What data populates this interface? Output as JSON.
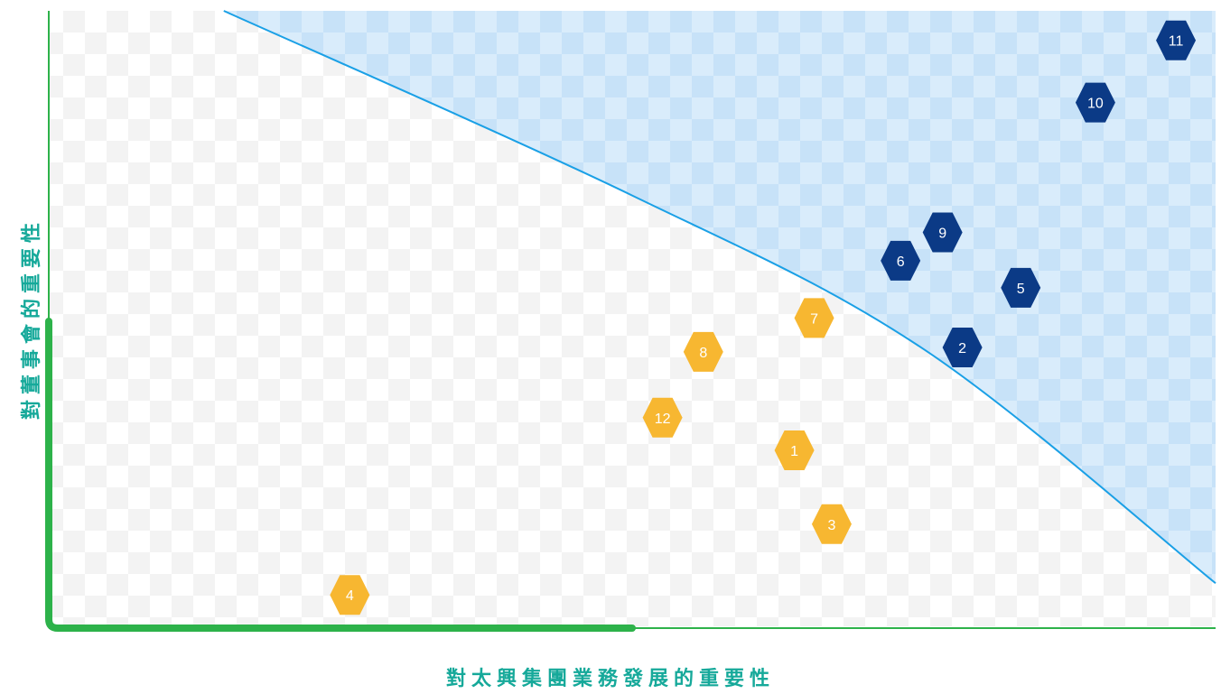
{
  "chart_data": {
    "type": "scatter",
    "title": "",
    "xlabel": "對太興集團業務發展的重要性",
    "ylabel": "對董事會的重要性",
    "xlim": [
      0,
      100
    ],
    "ylim": [
      0,
      100
    ],
    "grid": false,
    "legend": "none",
    "colors": {
      "material": "#0b3a86",
      "other": "#f7b731",
      "threshold_line": "#1aa0e6",
      "material_zone_fill": "#cfe7fb",
      "axis": "#2db24a",
      "title": "#16a99a"
    },
    "threshold_curve": [
      [
        15,
        100
      ],
      [
        50,
        70
      ],
      [
        75,
        45
      ],
      [
        100,
        7
      ]
    ],
    "series": [
      {
        "group": "material",
        "points": [
          {
            "label": "11",
            "x": 96.6,
            "y": 95.2
          },
          {
            "label": "10",
            "x": 89.7,
            "y": 85.1
          },
          {
            "label": "9",
            "x": 76.6,
            "y": 64.0
          },
          {
            "label": "6",
            "x": 73.0,
            "y": 59.4
          },
          {
            "label": "5",
            "x": 83.3,
            "y": 55.0
          },
          {
            "label": "2",
            "x": 78.3,
            "y": 45.3
          }
        ]
      },
      {
        "group": "other",
        "points": [
          {
            "label": "7",
            "x": 65.6,
            "y": 50.1
          },
          {
            "label": "8",
            "x": 56.1,
            "y": 44.6
          },
          {
            "label": "12",
            "x": 52.6,
            "y": 33.9
          },
          {
            "label": "1",
            "x": 63.9,
            "y": 28.6
          },
          {
            "label": "3",
            "x": 67.1,
            "y": 16.6
          },
          {
            "label": "4",
            "x": 25.8,
            "y": 5.1
          }
        ]
      }
    ]
  }
}
